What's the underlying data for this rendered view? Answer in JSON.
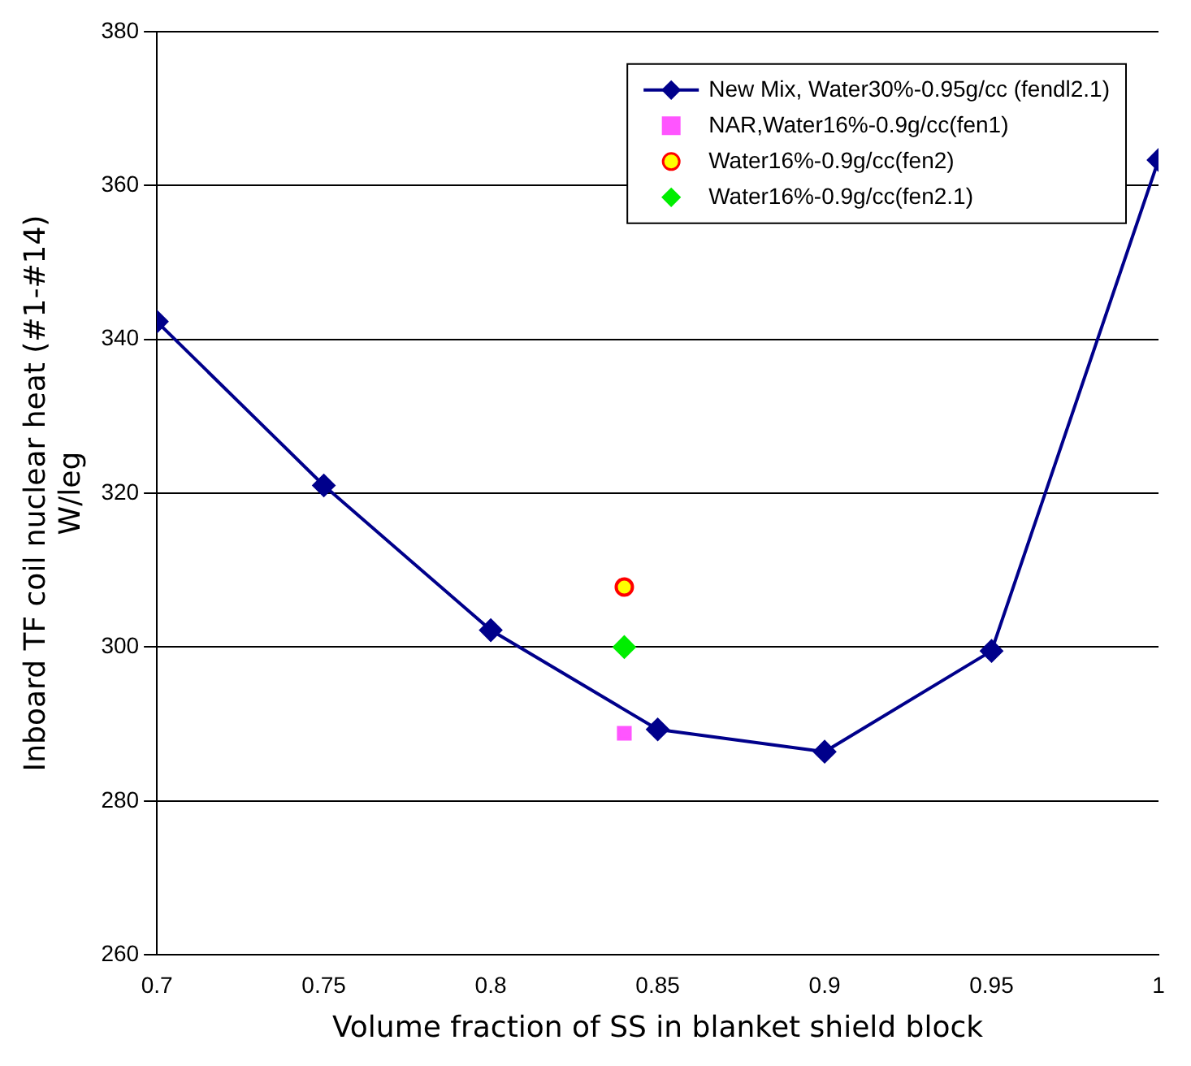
{
  "chart_data": {
    "type": "line",
    "xlabel": "Volume fraction of SS in blanket shield block",
    "ylabel": "Inboard TF coil nuclear heat (#1-#14)\nW/leg",
    "xlim": [
      0.7,
      1
    ],
    "xticks": [
      0.7,
      0.75,
      0.8,
      0.85,
      0.9,
      0.95,
      {
        "value": 1,
        "label": "1"
      }
    ],
    "ylim": [
      260,
      380
    ],
    "yticks": [
      260,
      280,
      300,
      320,
      340,
      360,
      380
    ],
    "grid": "y",
    "legend": "top right",
    "marker": "diamond",
    "line_style": "solid",
    "series": [
      {
        "name": "New Mix, Water30%-0.95g/cc (fendl2.1)",
        "type": "line",
        "color": "#00008b",
        "x": [
          0.7,
          0.75,
          0.8,
          0.85,
          0.9,
          0.95,
          1
        ],
        "values": [
          342.3,
          321,
          302.2,
          289.3,
          286.4,
          299.5,
          363.3
        ]
      },
      {
        "name": "NAR,Water16%-0.9g/cc(fen1)",
        "type": "scatter",
        "marker": "square",
        "color": "#ff55ff",
        "x": [
          0.84
        ],
        "values": [
          288.8
        ]
      },
      {
        "name": "Water16%-0.9g/cc(fen2)",
        "type": "scatter",
        "marker": "circle",
        "color": "#ffff00",
        "x": [
          0.84
        ],
        "values": [
          307.8
        ]
      },
      {
        "name": "Water16%-0.9g/cc(fen2.1)",
        "type": "scatter",
        "marker": "diamond",
        "color": "#00ee00",
        "x": [
          0.84
        ],
        "values": [
          300
        ]
      }
    ]
  }
}
